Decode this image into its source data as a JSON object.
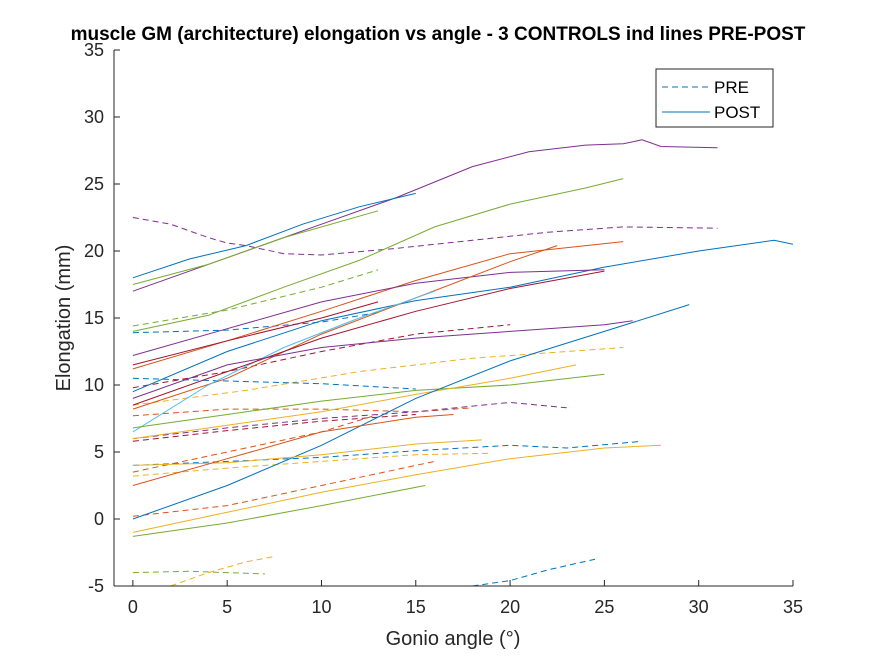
{
  "chart_data": {
    "type": "line",
    "title": "muscle GM (architecture) elongation vs angle - 3 CONTROLS ind lines PRE-POST",
    "xlabel": "Gonio angle (°)",
    "ylabel": "Elongation (mm)",
    "xlim": [
      -1,
      35
    ],
    "ylim": [
      -5,
      35
    ],
    "xticks": [
      0,
      5,
      10,
      15,
      20,
      25,
      30,
      35
    ],
    "yticks": [
      -5,
      0,
      5,
      10,
      15,
      20,
      25,
      30,
      35
    ],
    "grid": false,
    "legend": {
      "location": "top-right",
      "entries": [
        {
          "label": "PRE",
          "style": "dashed",
          "color": "#0072BD"
        },
        {
          "label": "POST",
          "style": "solid",
          "color": "#0072BD"
        }
      ]
    },
    "palette": [
      "#0072BD",
      "#D95319",
      "#EDB120",
      "#7E2F8E",
      "#77AC30",
      "#4DBEEE",
      "#A2142F"
    ],
    "series": [
      {
        "phase": "PRE",
        "color": "#7E2F8E",
        "x": [
          0,
          2,
          4,
          5,
          6,
          8,
          10,
          14,
          18,
          22,
          26,
          31
        ],
        "values": [
          22.5,
          22.0,
          21.0,
          20.6,
          20.4,
          19.8,
          19.7,
          20.2,
          20.8,
          21.4,
          21.8,
          21.7
        ]
      },
      {
        "phase": "PRE",
        "color": "#77AC30",
        "x": [
          0,
          5,
          10,
          13
        ],
        "values": [
          14.4,
          15.6,
          17.3,
          18.6
        ]
      },
      {
        "phase": "PRE",
        "color": "#0072BD",
        "x": [
          0,
          5,
          10,
          13
        ],
        "values": [
          13.9,
          14.1,
          14.7,
          15.4
        ]
      },
      {
        "phase": "PRE",
        "color": "#A2142F",
        "x": [
          0,
          5,
          10,
          15,
          20
        ],
        "values": [
          9.8,
          11.0,
          12.5,
          13.8,
          14.5
        ]
      },
      {
        "phase": "PRE",
        "color": "#EDB120",
        "x": [
          0,
          6,
          12,
          18,
          24,
          26
        ],
        "values": [
          8.5,
          9.6,
          11.0,
          12.0,
          12.6,
          12.8
        ]
      },
      {
        "phase": "PRE",
        "color": "#0072BD",
        "x": [
          0,
          5,
          10,
          15
        ],
        "values": [
          10.5,
          10.3,
          10.1,
          9.7
        ]
      },
      {
        "phase": "PRE",
        "color": "#D95319",
        "x": [
          0,
          5,
          10,
          15,
          18
        ],
        "values": [
          7.7,
          8.2,
          8.2,
          8.0,
          8.3
        ]
      },
      {
        "phase": "PRE",
        "color": "#7E2F8E",
        "x": [
          0,
          5,
          10,
          15,
          20,
          23
        ],
        "values": [
          6.0,
          6.8,
          7.5,
          8.0,
          8.7,
          8.3
        ]
      },
      {
        "phase": "PRE",
        "color": "#A2142F",
        "x": [
          0,
          5,
          10,
          15
        ],
        "values": [
          5.8,
          6.6,
          7.3,
          7.8
        ]
      },
      {
        "phase": "PRE",
        "color": "#D95319",
        "x": [
          0,
          5,
          10,
          13
        ],
        "values": [
          3.5,
          5.0,
          6.5,
          7.8
        ]
      },
      {
        "phase": "PRE",
        "color": "#0072BD",
        "x": [
          0,
          5,
          10,
          15,
          20,
          23,
          27
        ],
        "values": [
          4.0,
          4.3,
          4.6,
          5.1,
          5.5,
          5.3,
          5.8
        ]
      },
      {
        "phase": "PRE",
        "color": "#EDB120",
        "x": [
          0,
          5,
          10,
          15,
          19
        ],
        "values": [
          3.2,
          3.8,
          4.3,
          4.8,
          4.9
        ]
      },
      {
        "phase": "PRE",
        "color": "#D95319",
        "x": [
          0,
          5,
          10,
          16
        ],
        "values": [
          0.2,
          1.0,
          2.5,
          4.3
        ]
      },
      {
        "phase": "PRE",
        "color": "#77AC30",
        "x": [
          0,
          3,
          5,
          7
        ],
        "values": [
          -4.0,
          -3.9,
          -4.0,
          -4.1
        ]
      },
      {
        "phase": "PRE",
        "color": "#EDB120",
        "x": [
          2,
          4,
          6,
          7.5
        ],
        "values": [
          -5.0,
          -4.0,
          -3.2,
          -2.8
        ]
      },
      {
        "phase": "PRE",
        "color": "#0072BD",
        "x": [
          18,
          20,
          22,
          24.5
        ],
        "values": [
          -5.0,
          -4.6,
          -3.8,
          -3.0
        ]
      },
      {
        "phase": "POST",
        "color": "#7E2F8E",
        "x": [
          0,
          5,
          10,
          14,
          18,
          21,
          24,
          26,
          27,
          28,
          31
        ],
        "values": [
          17.0,
          19.5,
          22.0,
          24.0,
          26.3,
          27.4,
          27.9,
          28.0,
          28.3,
          27.8,
          27.7
        ]
      },
      {
        "phase": "POST",
        "color": "#0072BD",
        "x": [
          0,
          3,
          6,
          9,
          12,
          15
        ],
        "values": [
          18.0,
          19.4,
          20.4,
          22.0,
          23.3,
          24.3
        ]
      },
      {
        "phase": "POST",
        "color": "#77AC30",
        "x": [
          0,
          4,
          8,
          13
        ],
        "values": [
          17.5,
          19.0,
          21.0,
          23.0
        ]
      },
      {
        "phase": "POST",
        "color": "#77AC30",
        "x": [
          0,
          4,
          8,
          12,
          16,
          20,
          24,
          26
        ],
        "values": [
          14.0,
          15.2,
          17.3,
          19.3,
          21.8,
          23.5,
          24.7,
          25.4
        ]
      },
      {
        "phase": "POST",
        "color": "#0072BD",
        "x": [
          0,
          5,
          10,
          15,
          20,
          25,
          30,
          34,
          35
        ],
        "values": [
          9.5,
          12.5,
          14.8,
          16.3,
          17.3,
          18.8,
          20.0,
          20.8,
          20.5
        ]
      },
      {
        "phase": "POST",
        "color": "#D95319",
        "x": [
          0,
          5,
          10,
          15,
          20,
          26
        ],
        "values": [
          11.2,
          13.3,
          15.5,
          17.8,
          19.8,
          20.7
        ]
      },
      {
        "phase": "POST",
        "color": "#7E2F8E",
        "x": [
          0,
          5,
          10,
          15,
          20,
          25
        ],
        "values": [
          12.2,
          14.2,
          16.2,
          17.6,
          18.4,
          18.6
        ]
      },
      {
        "phase": "POST",
        "color": "#D95319",
        "x": [
          0,
          5,
          10,
          15,
          20,
          22.5
        ],
        "values": [
          8.2,
          10.5,
          13.8,
          16.5,
          19.2,
          20.4
        ]
      },
      {
        "phase": "POST",
        "color": "#4DBEEE",
        "x": [
          0,
          4,
          8,
          12,
          16
        ],
        "values": [
          6.5,
          10.0,
          12.8,
          15.0,
          17.0
        ]
      },
      {
        "phase": "POST",
        "color": "#A2142F",
        "x": [
          0,
          5,
          10,
          15,
          20,
          25
        ],
        "values": [
          8.5,
          11.0,
          13.5,
          15.5,
          17.2,
          18.5
        ]
      },
      {
        "phase": "POST",
        "color": "#A2142F",
        "x": [
          0,
          5,
          10,
          13
        ],
        "values": [
          11.5,
          13.3,
          15.0,
          16.2
        ]
      },
      {
        "phase": "POST",
        "color": "#7E2F8E",
        "x": [
          0,
          5,
          10,
          15,
          20,
          25,
          26.5
        ],
        "values": [
          9.0,
          11.5,
          12.8,
          13.5,
          14.0,
          14.5,
          14.8
        ]
      },
      {
        "phase": "POST",
        "color": "#77AC30",
        "x": [
          0,
          5,
          10,
          15,
          20,
          25
        ],
        "values": [
          6.8,
          7.8,
          8.8,
          9.6,
          10.0,
          10.8
        ]
      },
      {
        "phase": "POST",
        "color": "#EDB120",
        "x": [
          0,
          5,
          10,
          15,
          20,
          23.5
        ],
        "values": [
          6.0,
          7.0,
          8.0,
          9.3,
          10.5,
          11.5
        ]
      },
      {
        "phase": "POST",
        "color": "#0072BD",
        "x": [
          0,
          5,
          10,
          15,
          20,
          25,
          29.5
        ],
        "values": [
          0.0,
          2.5,
          5.5,
          9.0,
          11.8,
          14.0,
          16.0
        ]
      },
      {
        "phase": "POST",
        "color": "#EDB120",
        "x": [
          0,
          5,
          10,
          15,
          20,
          25,
          28
        ],
        "values": [
          -1.0,
          0.5,
          2.0,
          3.3,
          4.5,
          5.3,
          5.5
        ]
      },
      {
        "phase": "POST",
        "color": "#77AC30",
        "x": [
          0,
          5,
          10,
          15.5
        ],
        "values": [
          -1.3,
          -0.3,
          1.0,
          2.5
        ]
      },
      {
        "phase": "POST",
        "color": "#EDB120",
        "x": [
          0,
          5,
          10,
          15,
          18.5
        ],
        "values": [
          4.0,
          4.2,
          4.8,
          5.6,
          5.9
        ]
      },
      {
        "phase": "POST",
        "color": "#D95319",
        "x": [
          0,
          5,
          10,
          15,
          17
        ],
        "values": [
          2.5,
          4.5,
          6.5,
          7.6,
          7.8
        ]
      }
    ]
  }
}
